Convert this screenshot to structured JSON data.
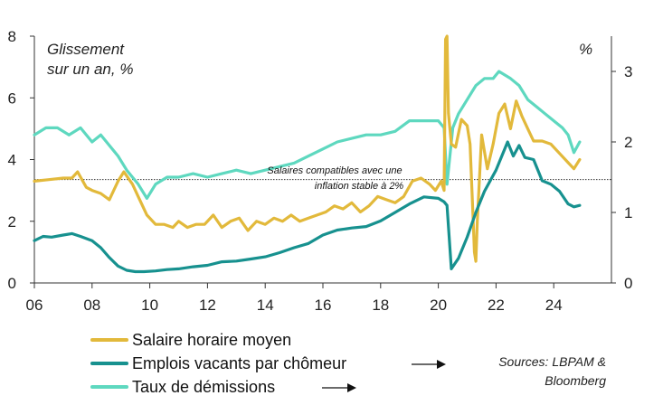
{
  "chart_data": {
    "type": "line",
    "title": "",
    "left_axis_note": [
      "Glissement",
      "sur un an, %"
    ],
    "right_axis_note": "%",
    "x_domain": [
      2006,
      2026
    ],
    "x_ticks": [
      {
        "value": 2006,
        "label": "06"
      },
      {
        "value": 2008,
        "label": "08"
      },
      {
        "value": 2010,
        "label": "10"
      },
      {
        "value": 2012,
        "label": "12"
      },
      {
        "value": 2014,
        "label": "14"
      },
      {
        "value": 2016,
        "label": "16"
      },
      {
        "value": 2018,
        "label": "18"
      },
      {
        "value": 2020,
        "label": "20"
      },
      {
        "value": 2022,
        "label": "22"
      },
      {
        "value": 2024,
        "label": "24"
      }
    ],
    "y_left": {
      "ylim": [
        0,
        8
      ],
      "ticks": [
        0,
        2,
        4,
        6,
        8
      ]
    },
    "y_right": {
      "ylim": [
        0,
        3.5
      ],
      "ticks": [
        0,
        1,
        2,
        3
      ]
    },
    "reference_line": {
      "axis": "left",
      "value": 3.35,
      "label": [
        "Salaires compatibles avec une",
        "inflation stable à 2%"
      ]
    },
    "series": [
      {
        "name": "Salaire horaire moyen",
        "axis": "left",
        "color": "#E2B93B",
        "x": [
          2006.0,
          2006.5,
          2007.0,
          2007.3,
          2007.5,
          2007.8,
          2008.0,
          2008.3,
          2008.6,
          2008.9,
          2009.1,
          2009.4,
          2009.6,
          2009.9,
          2010.2,
          2010.5,
          2010.8,
          2011.0,
          2011.3,
          2011.6,
          2011.9,
          2012.2,
          2012.5,
          2012.8,
          2013.1,
          2013.4,
          2013.7,
          2014.0,
          2014.3,
          2014.6,
          2014.9,
          2015.2,
          2015.5,
          2015.8,
          2016.1,
          2016.4,
          2016.7,
          2017.0,
          2017.3,
          2017.6,
          2017.9,
          2018.2,
          2018.5,
          2018.8,
          2019.1,
          2019.4,
          2019.7,
          2019.9,
          2020.1,
          2020.2,
          2020.25,
          2020.3,
          2020.35,
          2020.45,
          2020.6,
          2020.8,
          2021.0,
          2021.1,
          2021.2,
          2021.25,
          2021.3,
          2021.35,
          2021.5,
          2021.7,
          2021.9,
          2022.1,
          2022.3,
          2022.5,
          2022.7,
          2022.9,
          2023.1,
          2023.3,
          2023.6,
          2023.9,
          2024.2,
          2024.5,
          2024.7,
          2024.9
        ],
        "values": [
          3.3,
          3.35,
          3.4,
          3.4,
          3.6,
          3.1,
          3.0,
          2.9,
          2.7,
          3.3,
          3.6,
          3.2,
          2.8,
          2.2,
          1.9,
          1.9,
          1.8,
          2.0,
          1.8,
          1.9,
          1.9,
          2.2,
          1.8,
          2.0,
          2.1,
          1.7,
          2.0,
          1.9,
          2.1,
          2.0,
          2.2,
          2.0,
          2.1,
          2.2,
          2.3,
          2.5,
          2.4,
          2.6,
          2.3,
          2.5,
          2.8,
          2.7,
          2.6,
          2.8,
          3.3,
          3.4,
          3.2,
          3.0,
          3.3,
          3.0,
          7.9,
          8.0,
          5.5,
          4.5,
          4.4,
          5.3,
          5.1,
          4.5,
          2.2,
          1.0,
          0.7,
          2.0,
          4.8,
          3.7,
          4.5,
          5.5,
          5.8,
          5.0,
          5.9,
          5.4,
          5.0,
          4.6,
          4.6,
          4.5,
          4.2,
          3.9,
          3.7,
          4.0
        ]
      },
      {
        "name": "Emplois vacants par chômeur",
        "axis": "right",
        "color": "#17918F",
        "x": [
          2006.0,
          2006.3,
          2006.6,
          2007.0,
          2007.3,
          2007.6,
          2008.0,
          2008.3,
          2008.6,
          2008.9,
          2009.2,
          2009.5,
          2009.8,
          2010.2,
          2010.6,
          2011.0,
          2011.5,
          2012.0,
          2012.5,
          2013.0,
          2013.5,
          2014.0,
          2014.5,
          2015.0,
          2015.5,
          2016.0,
          2016.5,
          2017.0,
          2017.5,
          2018.0,
          2018.5,
          2019.0,
          2019.5,
          2020.0,
          2020.2,
          2020.3,
          2020.45,
          2020.7,
          2021.0,
          2021.3,
          2021.6,
          2022.0,
          2022.2,
          2022.4,
          2022.6,
          2022.8,
          2023.0,
          2023.3,
          2023.6,
          2023.9,
          2024.2,
          2024.5,
          2024.7,
          2024.9
        ],
        "values": [
          0.6,
          0.66,
          0.65,
          0.68,
          0.7,
          0.66,
          0.6,
          0.5,
          0.36,
          0.24,
          0.18,
          0.16,
          0.16,
          0.17,
          0.19,
          0.2,
          0.23,
          0.25,
          0.3,
          0.31,
          0.34,
          0.37,
          0.43,
          0.5,
          0.56,
          0.68,
          0.75,
          0.78,
          0.8,
          0.88,
          1.0,
          1.12,
          1.22,
          1.2,
          1.15,
          1.1,
          0.2,
          0.35,
          0.65,
          1.0,
          1.3,
          1.6,
          1.8,
          2.0,
          1.8,
          1.95,
          1.78,
          1.75,
          1.45,
          1.4,
          1.3,
          1.12,
          1.08,
          1.1
        ]
      },
      {
        "name": "Taux de démissions",
        "axis": "right",
        "color": "#5ED8BF",
        "x": [
          2006.0,
          2006.4,
          2006.8,
          2007.2,
          2007.6,
          2008.0,
          2008.3,
          2008.6,
          2008.9,
          2009.2,
          2009.6,
          2009.9,
          2010.2,
          2010.6,
          2011.0,
          2011.5,
          2012.0,
          2012.5,
          2013.0,
          2013.5,
          2014.0,
          2014.5,
          2015.0,
          2015.5,
          2016.0,
          2016.5,
          2017.0,
          2017.5,
          2018.0,
          2018.5,
          2019.0,
          2019.5,
          2020.0,
          2020.2,
          2020.3,
          2020.4,
          2020.5,
          2020.7,
          2021.0,
          2021.3,
          2021.6,
          2021.9,
          2022.1,
          2022.3,
          2022.5,
          2022.8,
          2023.1,
          2023.4,
          2023.7,
          2024.0,
          2024.3,
          2024.5,
          2024.7,
          2024.9
        ],
        "values": [
          2.1,
          2.2,
          2.2,
          2.1,
          2.2,
          2.0,
          2.1,
          1.95,
          1.8,
          1.6,
          1.4,
          1.2,
          1.4,
          1.5,
          1.5,
          1.55,
          1.5,
          1.55,
          1.6,
          1.55,
          1.6,
          1.65,
          1.7,
          1.8,
          1.9,
          2.0,
          2.05,
          2.1,
          2.1,
          2.15,
          2.3,
          2.3,
          2.3,
          2.2,
          1.4,
          1.8,
          2.2,
          2.4,
          2.6,
          2.8,
          2.9,
          2.9,
          3.0,
          2.95,
          2.9,
          2.8,
          2.6,
          2.5,
          2.4,
          2.3,
          2.2,
          2.1,
          1.85,
          2.0
        ]
      }
    ],
    "legend": [
      {
        "label": "Salaire horaire moyen",
        "color": "#E2B93B",
        "arrow": false
      },
      {
        "label": "Emplois vacants par chômeur",
        "color": "#17918F",
        "arrow": true
      },
      {
        "label": "Taux de démissions",
        "color": "#5ED8BF",
        "arrow": true
      }
    ],
    "source": [
      "Sources: LBPAM &",
      "Bloomberg"
    ]
  }
}
